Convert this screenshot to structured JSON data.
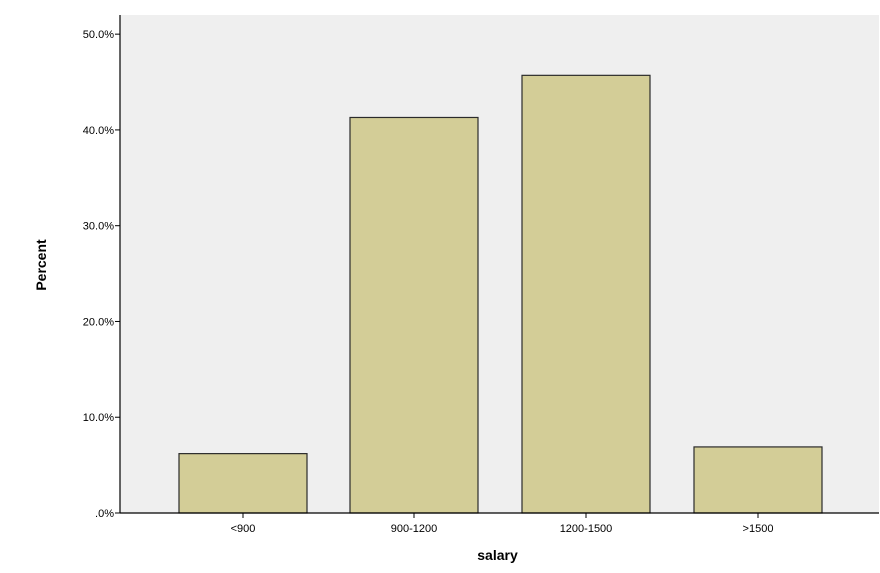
{
  "chart_data": {
    "type": "bar",
    "title": "",
    "xlabel": "salary",
    "ylabel": "Percent",
    "categories": [
      "<900",
      "900-1200",
      "1200-1500",
      ">1500"
    ],
    "values": [
      6.2,
      41.3,
      45.7,
      6.9
    ],
    "ylim": [
      0,
      52
    ],
    "yticks": [
      0,
      10,
      20,
      30,
      40,
      50
    ],
    "ytick_labels": [
      ".0%",
      "10.0%",
      "20.0%",
      "30.0%",
      "40.0%",
      "50.0%"
    ],
    "grid": false,
    "legend": "none",
    "colors": {
      "bar_fill": "#d3cd97",
      "bar_stroke": "#2b2b2b",
      "plot_background": "#efefef",
      "axis": "#000000"
    }
  }
}
